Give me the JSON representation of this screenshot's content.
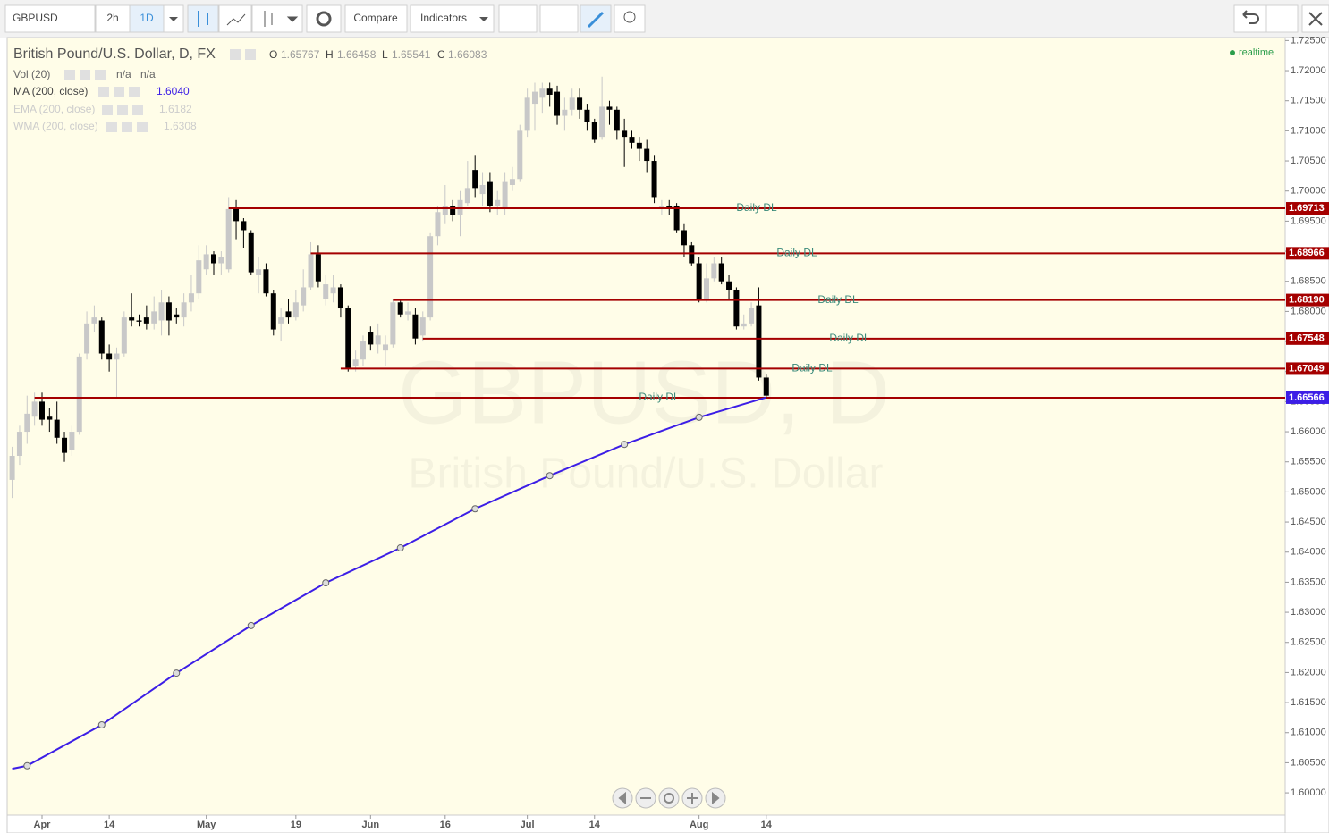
{
  "toolbar": {
    "symbol": "GBPUSD",
    "intervals": [
      "2h",
      "1D"
    ],
    "compare": "Compare",
    "indicators": "Indicators"
  },
  "legend": {
    "title": "British Pound/U.S. Dollar, D, FX",
    "ohlc": [
      {
        "key": "O",
        "value": 1.65767
      },
      {
        "key": "H",
        "value": 1.66458
      },
      {
        "key": "L",
        "value": 1.65541
      },
      {
        "key": "C",
        "value": 1.66083
      }
    ],
    "studies": [
      {
        "name": "Vol (20)",
        "values": [
          "n/a",
          "n/a"
        ]
      },
      {
        "name": "MA (200, close)",
        "values": [
          "1.6040"
        ]
      },
      {
        "name": "EMA (200, close)",
        "values": [
          "1.6182"
        ]
      },
      {
        "name": "WMA (200, close)",
        "values": [
          "1.6308"
        ]
      }
    ]
  },
  "status": "realtime",
  "watermark": {
    "symbol": "GBPUSD, D",
    "description": "British Pound/U.S. Dollar"
  },
  "chart_data": {
    "type": "candlestick",
    "up_color": "#c8c8c8",
    "down_color": "#000000",
    "grid": false,
    "open": [
      1.652,
      1.656,
      1.66,
      1.6625,
      1.665,
      1.6625,
      1.662,
      1.659,
      1.657,
      1.66,
      1.673,
      1.678,
      1.6785,
      1.673,
      1.672,
      1.673,
      1.679,
      1.6785,
      1.679,
      1.678,
      1.6785,
      1.6815,
      1.6795,
      1.679,
      1.6815,
      1.683,
      1.687,
      1.6895,
      1.688,
      1.687,
      1.697,
      1.695,
      1.693,
      1.686,
      1.687,
      1.683,
      1.678,
      1.68,
      1.679,
      1.681,
      1.684,
      1.6895,
      1.682,
      1.683,
      1.684,
      1.6805,
      1.671,
      1.672,
      1.6765,
      1.6745,
      1.6735,
      1.6745,
      1.6815,
      1.6795,
      1.6795,
      1.676,
      1.679,
      1.6925,
      1.696,
      1.6975,
      1.696,
      1.698,
      1.7035,
      1.6995,
      1.7015,
      1.6975,
      1.697,
      1.701,
      1.702,
      1.71,
      1.7145,
      1.7155,
      1.717,
      1.7165,
      1.7125,
      1.7135,
      1.7155,
      1.7135,
      1.7115,
      1.709,
      1.714,
      1.7135,
      1.71,
      1.709,
      1.708,
      1.707,
      1.705,
      1.697,
      1.6975,
      1.6975,
      1.6935,
      1.691,
      1.688,
      1.682,
      1.6855,
      1.688,
      1.685,
      1.6835,
      1.6775,
      1.678,
      1.681,
      1.669
    ],
    "high": [
      1.6575,
      1.661,
      1.666,
      1.6665,
      1.6665,
      1.664,
      1.665,
      1.66,
      1.661,
      1.673,
      1.68,
      1.681,
      1.679,
      1.6745,
      1.674,
      1.68,
      1.683,
      1.6795,
      1.681,
      1.6825,
      1.6835,
      1.6825,
      1.6805,
      1.683,
      1.686,
      1.691,
      1.691,
      1.69,
      1.69,
      1.699,
      1.6985,
      1.6955,
      1.6935,
      1.689,
      1.688,
      1.6835,
      1.6805,
      1.682,
      1.6835,
      1.687,
      1.6915,
      1.691,
      1.686,
      1.686,
      1.6845,
      1.681,
      1.6735,
      1.676,
      1.6775,
      1.678,
      1.676,
      1.682,
      1.682,
      1.6815,
      1.6805,
      1.68,
      1.693,
      1.6975,
      1.701,
      1.6985,
      1.7,
      1.705,
      1.706,
      1.703,
      1.703,
      1.7,
      1.703,
      1.704,
      1.711,
      1.717,
      1.718,
      1.718,
      1.718,
      1.7175,
      1.7155,
      1.717,
      1.717,
      1.7145,
      1.712,
      1.719,
      1.715,
      1.714,
      1.712,
      1.71,
      1.709,
      1.7085,
      1.706,
      1.6985,
      1.6985,
      1.698,
      1.6945,
      1.6915,
      1.689,
      1.688,
      1.689,
      1.689,
      1.686,
      1.684,
      1.6795,
      1.6815,
      1.684,
      1.6695
    ],
    "low": [
      1.649,
      1.6545,
      1.658,
      1.661,
      1.661,
      1.66,
      1.658,
      1.655,
      1.656,
      1.6595,
      1.672,
      1.6765,
      1.672,
      1.67,
      1.6655,
      1.6725,
      1.6775,
      1.6775,
      1.677,
      1.677,
      1.676,
      1.676,
      1.678,
      1.6775,
      1.68,
      1.682,
      1.686,
      1.686,
      1.686,
      1.6865,
      1.692,
      1.6905,
      1.686,
      1.683,
      1.6825,
      1.676,
      1.675,
      1.678,
      1.6785,
      1.68,
      1.6835,
      1.684,
      1.681,
      1.6815,
      1.679,
      1.67,
      1.67,
      1.671,
      1.6735,
      1.673,
      1.671,
      1.674,
      1.679,
      1.6785,
      1.6745,
      1.675,
      1.6785,
      1.691,
      1.6945,
      1.695,
      1.6925,
      1.6975,
      1.699,
      1.6975,
      1.6965,
      1.696,
      1.696,
      1.7,
      1.7015,
      1.709,
      1.71,
      1.713,
      1.714,
      1.711,
      1.71,
      1.7125,
      1.712,
      1.71,
      1.708,
      1.7085,
      1.711,
      1.7085,
      1.704,
      1.707,
      1.705,
      1.703,
      1.698,
      1.696,
      1.696,
      1.693,
      1.689,
      1.6875,
      1.6815,
      1.6815,
      1.685,
      1.6845,
      1.682,
      1.677,
      1.677,
      1.6775,
      1.6685,
      1.6655
    ],
    "close": [
      1.656,
      1.66,
      1.663,
      1.665,
      1.662,
      1.662,
      1.659,
      1.6565,
      1.66,
      1.6725,
      1.678,
      1.679,
      1.673,
      1.672,
      1.673,
      1.679,
      1.6785,
      1.6783,
      1.678,
      1.68,
      1.6815,
      1.6785,
      1.679,
      1.6815,
      1.683,
      1.6885,
      1.6895,
      1.688,
      1.689,
      1.697,
      1.695,
      1.6935,
      1.6865,
      1.687,
      1.683,
      1.677,
      1.679,
      1.679,
      1.6815,
      1.684,
      1.6895,
      1.685,
      1.6845,
      1.684,
      1.6805,
      1.6705,
      1.672,
      1.675,
      1.6745,
      1.676,
      1.6745,
      1.6815,
      1.6795,
      1.68,
      1.6755,
      1.679,
      1.6925,
      1.6965,
      1.6975,
      1.696,
      1.6985,
      1.7005,
      1.7005,
      1.701,
      1.6975,
      1.6985,
      1.7015,
      1.702,
      1.71,
      1.7155,
      1.7165,
      1.717,
      1.716,
      1.7125,
      1.7135,
      1.7155,
      1.7135,
      1.7115,
      1.7085,
      1.714,
      1.7135,
      1.71,
      1.709,
      1.708,
      1.707,
      1.705,
      1.699,
      1.6975,
      1.697,
      1.6935,
      1.691,
      1.688,
      1.682,
      1.6855,
      1.688,
      1.685,
      1.6835,
      1.6775,
      1.678,
      1.6805,
      1.669,
      1.666
    ],
    "xlim": [
      -0.67,
      170.5
    ],
    "xticks": [
      {
        "value": 4,
        "label": "Apr"
      },
      {
        "value": 13,
        "label": "14"
      },
      {
        "value": 26,
        "label": "May"
      },
      {
        "value": 38,
        "label": "19"
      },
      {
        "value": 48,
        "label": "Jun"
      },
      {
        "value": 58,
        "label": "16"
      },
      {
        "value": 69,
        "label": "Jul"
      },
      {
        "value": 78,
        "label": "14"
      },
      {
        "value": 92,
        "label": "Aug"
      },
      {
        "value": 101,
        "label": "14"
      }
    ],
    "ylim": [
      1.5963,
      1.7255
    ],
    "yticks": [
      {
        "value": 1.6,
        "label": "1.60000"
      },
      {
        "value": 1.605,
        "label": "1.60500"
      },
      {
        "value": 1.61,
        "label": "1.61000"
      },
      {
        "value": 1.615,
        "label": "1.61500"
      },
      {
        "value": 1.62,
        "label": "1.62000"
      },
      {
        "value": 1.625,
        "label": "1.62500"
      },
      {
        "value": 1.63,
        "label": "1.63000"
      },
      {
        "value": 1.635,
        "label": "1.63500"
      },
      {
        "value": 1.64,
        "label": "1.64000"
      },
      {
        "value": 1.645,
        "label": "1.64500"
      },
      {
        "value": 1.65,
        "label": "1.65000"
      },
      {
        "value": 1.655,
        "label": "1.65500"
      },
      {
        "value": 1.66,
        "label": "1.66000"
      },
      {
        "value": 1.665,
        "label": "1.66500"
      },
      {
        "value": 1.67,
        "label": "1.67000"
      },
      {
        "value": 1.675,
        "label": "1.67500"
      },
      {
        "value": 1.68,
        "label": "1.68000"
      },
      {
        "value": 1.685,
        "label": "1.68500"
      },
      {
        "value": 1.69,
        "label": "1.69000"
      },
      {
        "value": 1.695,
        "label": "1.69500"
      },
      {
        "value": 1.7,
        "label": "1.70000"
      },
      {
        "value": 1.705,
        "label": "1.70500"
      },
      {
        "value": 1.71,
        "label": "1.71000"
      },
      {
        "value": 1.715,
        "label": "1.71500"
      },
      {
        "value": 1.72,
        "label": "1.72000"
      },
      {
        "value": 1.725,
        "label": "1.72500"
      }
    ],
    "series": [
      {
        "name": "MA (200, close)",
        "color": "#3c1ee6",
        "x": [
          0,
          2,
          12,
          22,
          32,
          42,
          52,
          62,
          72,
          82,
          92,
          101
        ],
        "values": [
          1.604,
          1.6045,
          1.6113,
          1.6199,
          1.6278,
          1.6349,
          1.6407,
          1.6472,
          1.6527,
          1.6579,
          1.6624,
          1.6657
        ]
      }
    ],
    "levels": {
      "name": "Daily DL",
      "color": "#a50000",
      "start": [
        29,
        40,
        51,
        55,
        44,
        3
      ],
      "values": [
        1.69713,
        1.68966,
        1.6819,
        1.67548,
        1.67049,
        1.66566
      ],
      "value_labels": [
        "1.69713",
        "1.68966",
        "1.68190",
        "1.67548",
        "1.67049",
        "1.66566"
      ],
      "tag_colors": [
        "#a50000",
        "#a50000",
        "#a50000",
        "#a50000",
        "#a50000",
        "#3c1ee6"
      ]
    }
  }
}
